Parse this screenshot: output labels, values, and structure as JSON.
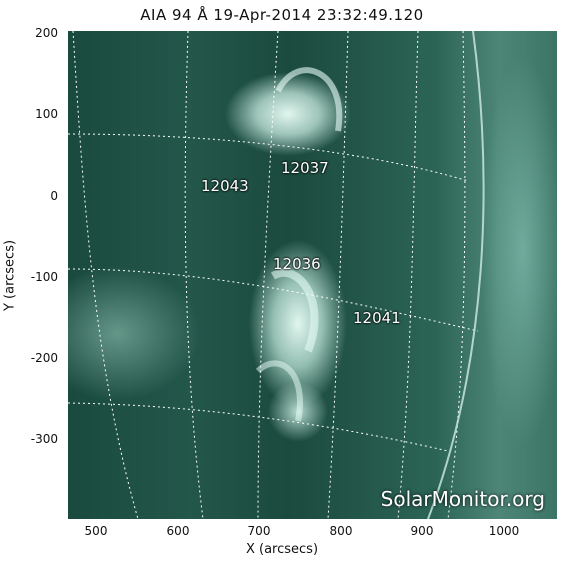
{
  "title": "AIA 94 Å 19-Apr-2014 23:32:49.120",
  "x_axis": {
    "label": "X (arcsecs)",
    "ticks": [
      "500",
      "600",
      "700",
      "800",
      "900",
      "1000"
    ],
    "range": [
      463,
      1062
    ]
  },
  "y_axis": {
    "label": "Y (arcsecs)",
    "ticks": [
      "200",
      "100",
      "0",
      "-100",
      "-200",
      "-300"
    ],
    "range": [
      -398,
      203
    ]
  },
  "active_regions": [
    {
      "label": "12037"
    },
    {
      "label": "12043"
    },
    {
      "label": "12036"
    },
    {
      "label": "12041"
    }
  ],
  "watermark": "SolarMonitor.org",
  "colors": {
    "plot_background": "#23574a",
    "bright": "#e8fff8"
  }
}
